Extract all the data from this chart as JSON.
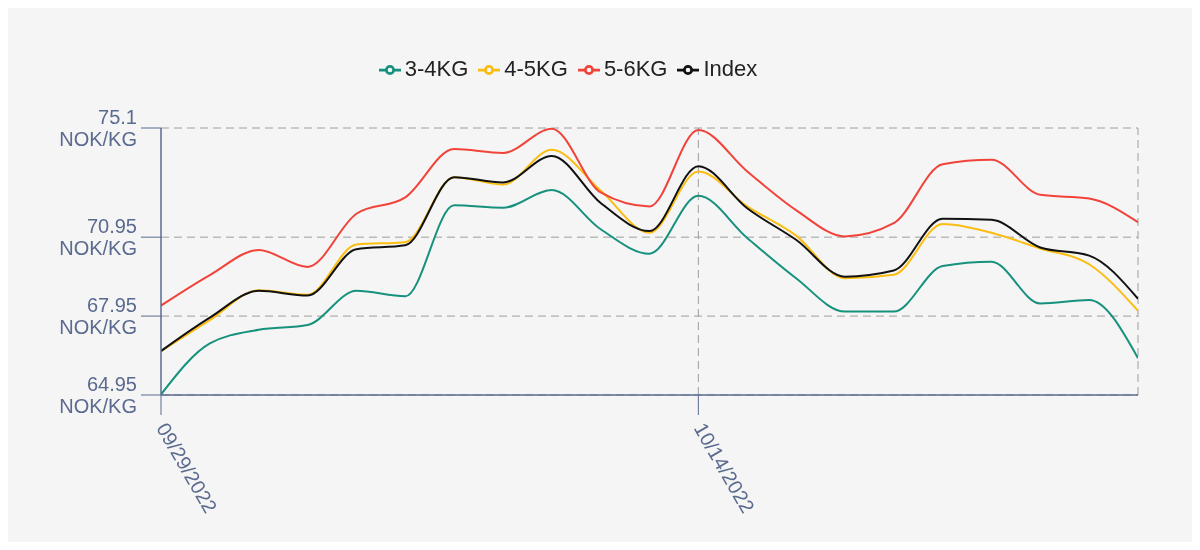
{
  "chart_data": {
    "type": "line",
    "categories": [
      "09/29/2022",
      null,
      null,
      null,
      null,
      null,
      null,
      null,
      null,
      null,
      null,
      "10/14/2022",
      null,
      null,
      null,
      null,
      null,
      null,
      null,
      null,
      null
    ],
    "series": [
      {
        "name": "3-4KG",
        "color": "#16917d",
        "values": [
          64.97,
          66.91,
          67.43,
          67.61,
          68.91,
          68.7,
          72.16,
          72.07,
          72.74,
          71.25,
          70.32,
          72.52,
          70.92,
          69.39,
          68.12,
          68.12,
          69.85,
          70.02,
          68.43,
          68.56,
          66.35
        ]
      },
      {
        "name": "4-5KG",
        "color": "#fbbd0f",
        "values": [
          66.62,
          67.8,
          68.93,
          68.76,
          70.67,
          70.76,
          73.23,
          72.95,
          74.27,
          72.72,
          71.12,
          73.45,
          72.12,
          71.01,
          69.39,
          69.52,
          71.45,
          71.12,
          70.52,
          69.92,
          68.15
        ]
      },
      {
        "name": "5-6KG",
        "color": "#f1433a",
        "values": [
          68.35,
          69.51,
          70.46,
          69.82,
          71.84,
          72.46,
          74.3,
          74.15,
          75.07,
          72.65,
          72.12,
          75.02,
          73.45,
          71.98,
          70.98,
          71.48,
          73.72,
          73.89,
          72.56,
          72.42,
          71.52
        ]
      },
      {
        "name": "Index",
        "color": "#111111",
        "values": [
          66.62,
          67.89,
          68.91,
          68.73,
          70.49,
          70.64,
          73.23,
          73.03,
          74.04,
          72.25,
          71.18,
          73.65,
          72.05,
          70.85,
          69.45,
          69.68,
          71.65,
          71.61,
          70.56,
          70.25,
          68.61
        ]
      }
    ],
    "ylim": [
      64.95,
      75.1
    ],
    "yticks": [
      {
        "value": 64.95,
        "label": "64.95 NOK/KG"
      },
      {
        "value": 67.95,
        "label": "67.95 NOK/KG"
      },
      {
        "value": 70.95,
        "label": "70.95 NOK/KG"
      },
      {
        "value": 75.1,
        "label": "75.1 NOK/KG"
      }
    ],
    "grid": true,
    "legend": "top",
    "marker": "none",
    "line_style": "solid"
  }
}
